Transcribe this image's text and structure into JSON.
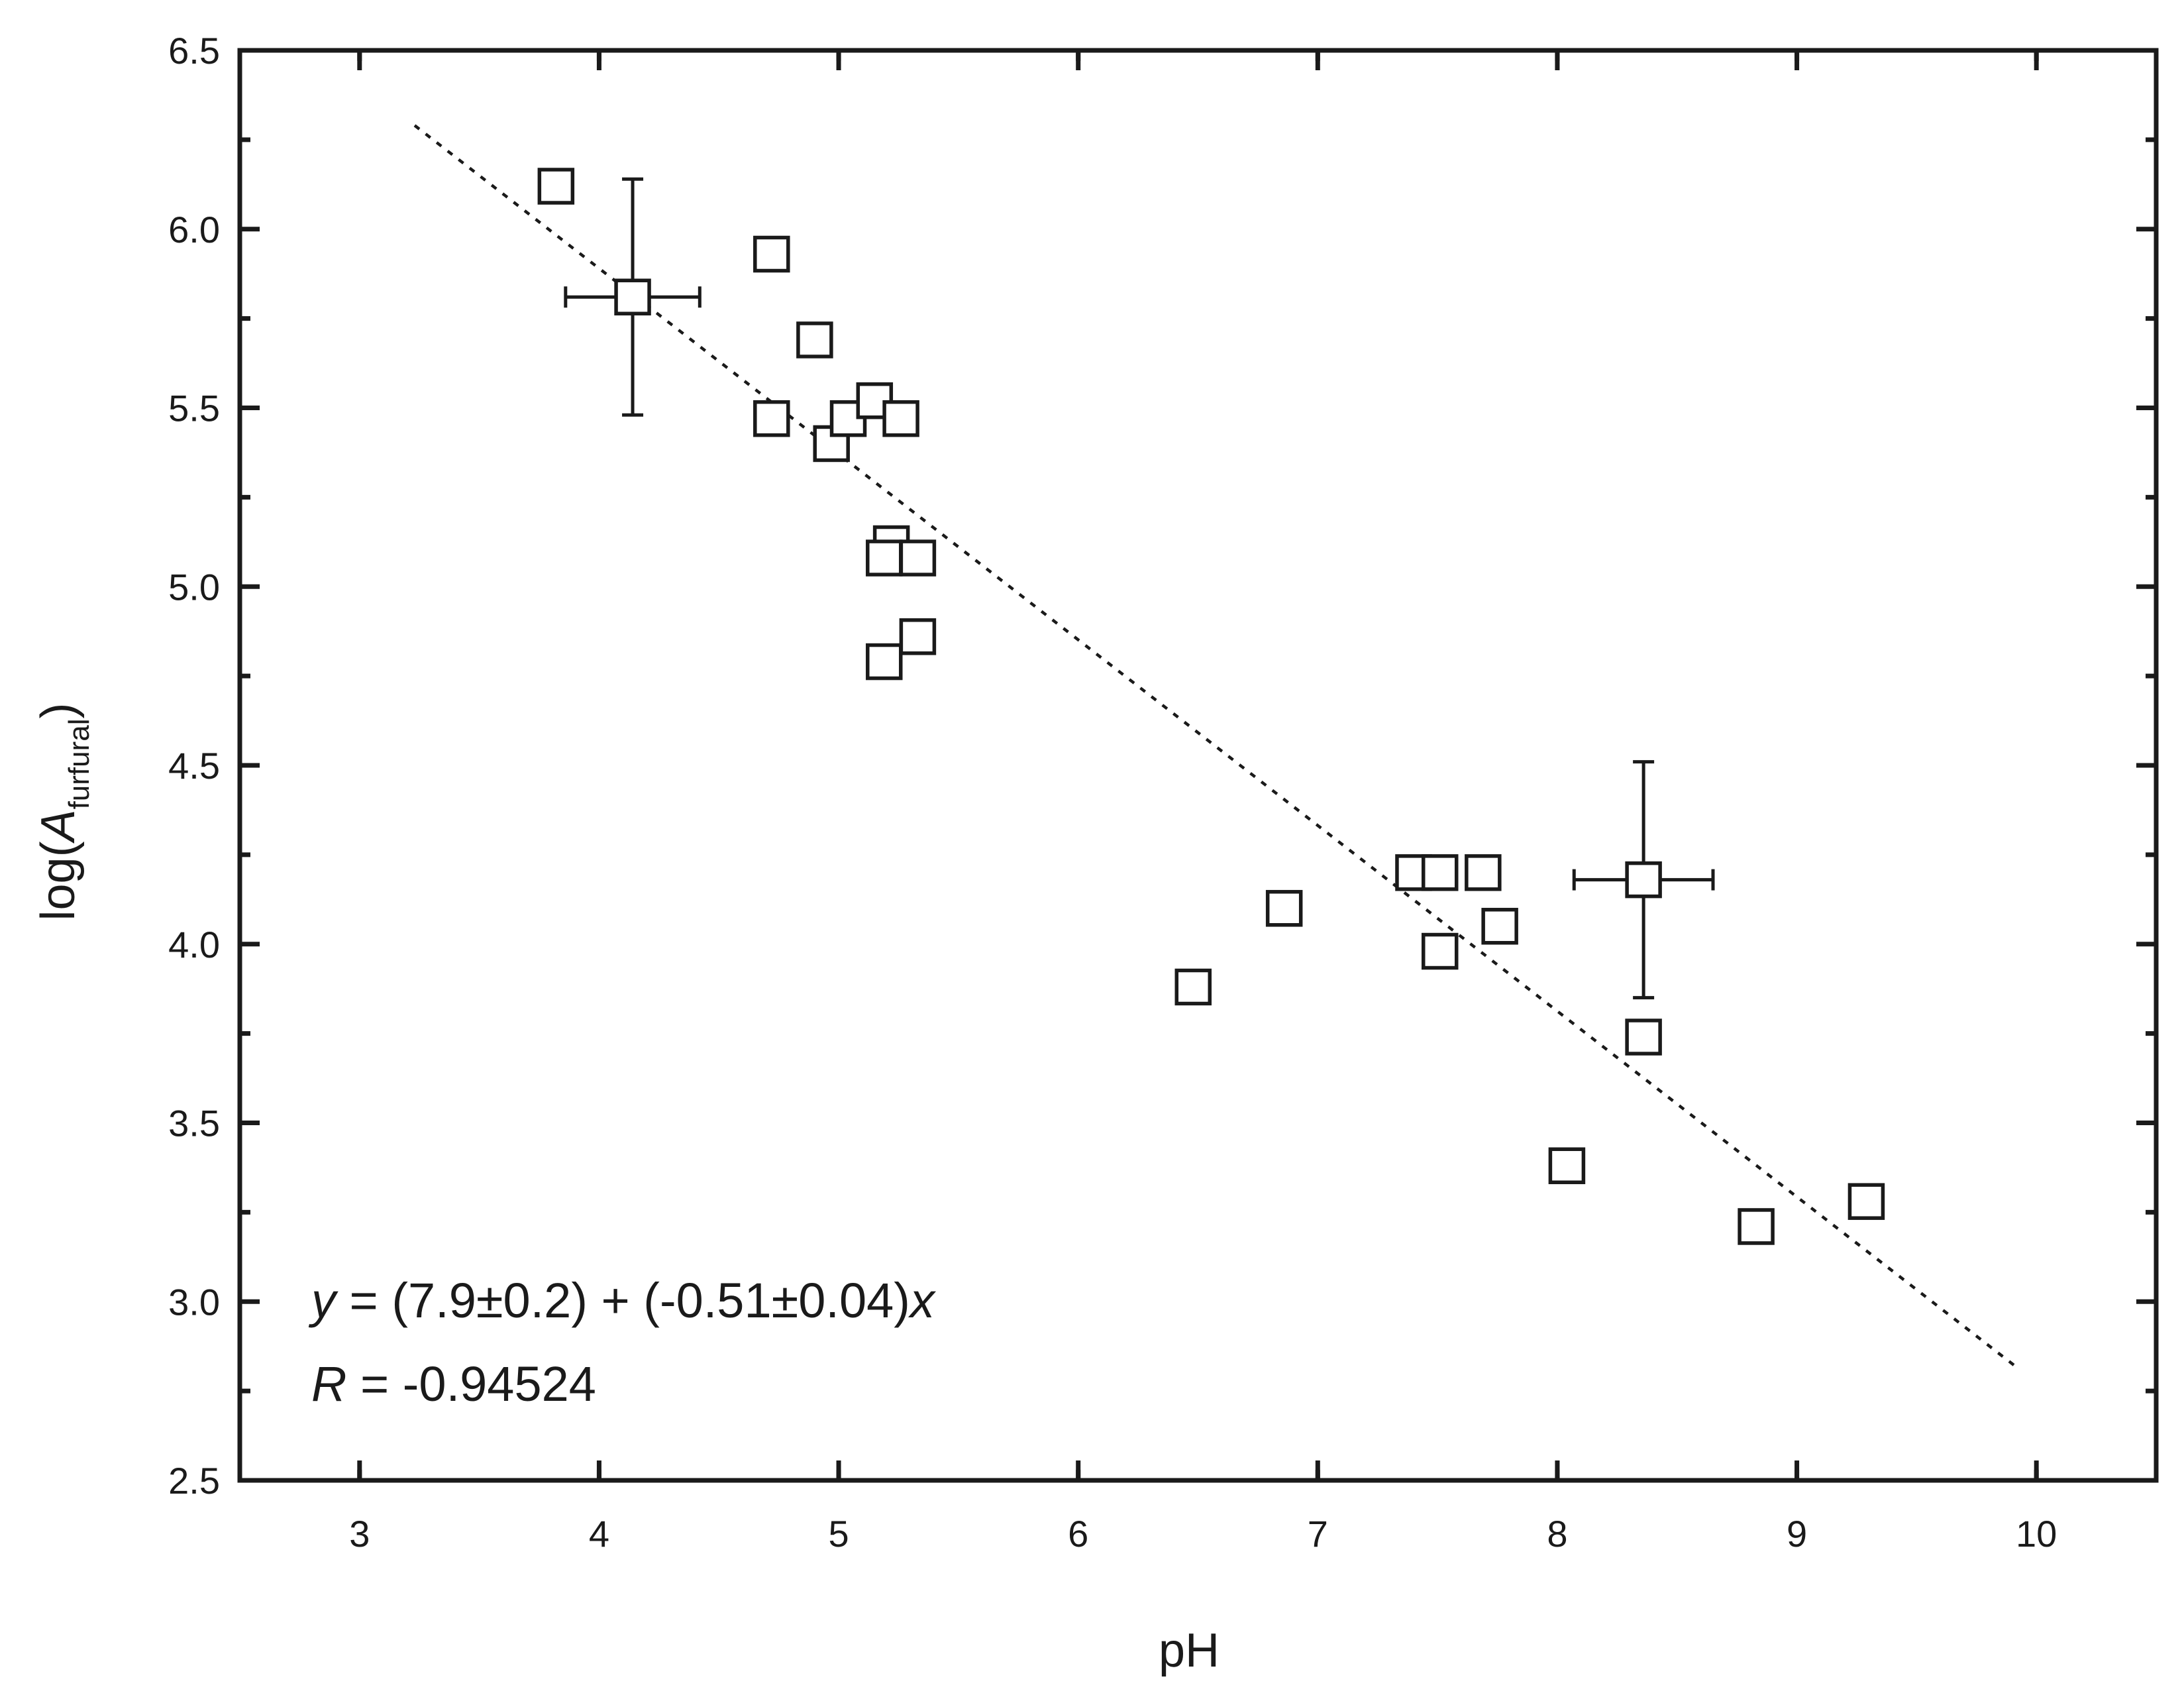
{
  "chart_data": {
    "type": "scatter",
    "xlabel": "pH",
    "ylabel": {
      "prefix": "log",
      "symbol": "A",
      "subscript": "furfural"
    },
    "xlim": [
      2.5,
      10.5
    ],
    "ylim": [
      2.5,
      6.5
    ],
    "x_ticks": [
      "3",
      "4",
      "5",
      "6",
      "7",
      "8",
      "9",
      "10"
    ],
    "y_ticks": [
      "2.5",
      "3.0",
      "3.5",
      "4.0",
      "4.5",
      "5.0",
      "5.5",
      "6.0",
      "6.5"
    ],
    "grid": false,
    "colors": {
      "axis": "#1a1a1a",
      "marker_fill": "#ffffff",
      "marker_stroke": "#1a1a1a"
    },
    "points": [
      {
        "x": 3.82,
        "y": 6.12
      },
      {
        "x": 4.14,
        "y": 5.81,
        "xerr": 0.28,
        "yerr": 0.33
      },
      {
        "x": 4.72,
        "y": 5.93
      },
      {
        "x": 4.72,
        "y": 5.47
      },
      {
        "x": 4.9,
        "y": 5.69
      },
      {
        "x": 4.97,
        "y": 5.4
      },
      {
        "x": 5.04,
        "y": 5.47
      },
      {
        "x": 5.15,
        "y": 5.52
      },
      {
        "x": 5.26,
        "y": 5.47
      },
      {
        "x": 5.22,
        "y": 5.12
      },
      {
        "x": 5.19,
        "y": 5.08
      },
      {
        "x": 5.33,
        "y": 5.08
      },
      {
        "x": 5.33,
        "y": 4.86
      },
      {
        "x": 5.19,
        "y": 4.79
      },
      {
        "x": 6.48,
        "y": 3.88
      },
      {
        "x": 6.86,
        "y": 4.1
      },
      {
        "x": 7.4,
        "y": 4.2
      },
      {
        "x": 7.51,
        "y": 4.2
      },
      {
        "x": 7.69,
        "y": 4.2
      },
      {
        "x": 7.51,
        "y": 3.98
      },
      {
        "x": 7.76,
        "y": 4.05
      },
      {
        "x": 8.36,
        "y": 4.18,
        "xerr": 0.29,
        "yerr": 0.33
      },
      {
        "x": 8.36,
        "y": 3.74
      },
      {
        "x": 8.04,
        "y": 3.38
      },
      {
        "x": 8.83,
        "y": 3.21
      },
      {
        "x": 9.29,
        "y": 3.28
      }
    ],
    "fit_line": {
      "x": [
        3.23,
        9.93
      ],
      "y": [
        6.29,
        2.81
      ],
      "style": "dotted"
    },
    "annotation": {
      "equation": {
        "var_y": "y",
        "body": " = (7.9±0.2) + (-0.51±0.04)",
        "var_x": "x"
      },
      "r": {
        "var": "R",
        "body": " = -0.94524"
      }
    }
  }
}
